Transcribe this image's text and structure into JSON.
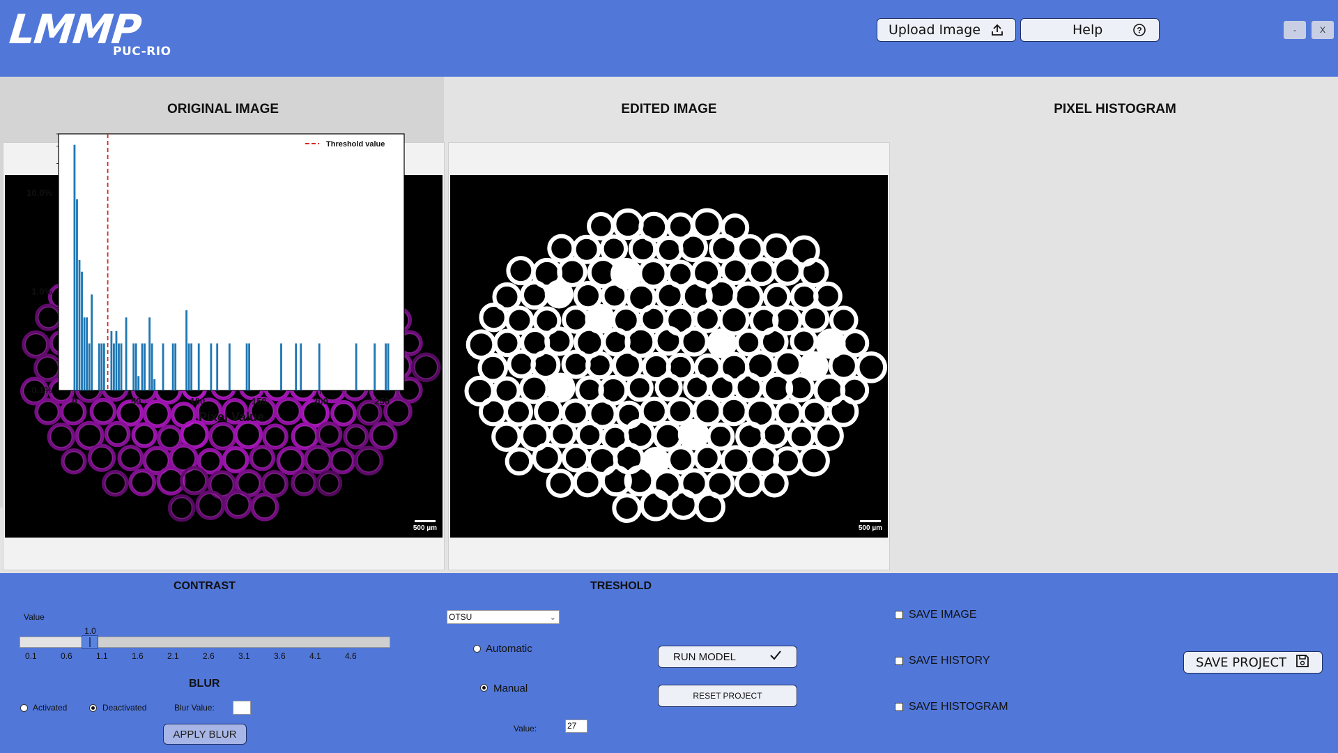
{
  "header": {
    "logo_text": "LMMP",
    "logo_subtext": "PUC-RIO",
    "upload_label": "Upload Image",
    "help_label": "Help",
    "minimize_label": "-",
    "close_label": "X"
  },
  "panels": {
    "original_title": "ORIGINAL IMAGE",
    "edited_title": "EDITED IMAGE",
    "histogram_title": "PIXEL HISTOGRAM",
    "scale_label": "500 µm"
  },
  "chart_data": {
    "type": "bar",
    "title": "",
    "xlabel": "Pixel Value",
    "ylabel": "",
    "y_scale": "log",
    "xlim": [
      -13,
      268
    ],
    "ylim": [
      0.1,
      40
    ],
    "x_ticks": [
      0,
      50,
      100,
      150,
      200,
      250
    ],
    "y_ticks": [
      {
        "value": 0.1,
        "label": "0.1%"
      },
      {
        "value": 1.0,
        "label": "1.0%"
      },
      {
        "value": 10.0,
        "label": "10.0%"
      }
    ],
    "legend": {
      "position": "top-right",
      "entries": [
        "Threshold value"
      ]
    },
    "threshold": 27,
    "bins": [
      {
        "x": 0,
        "y": 31
      },
      {
        "x": 2,
        "y": 8.7
      },
      {
        "x": 4,
        "y": 2.1
      },
      {
        "x": 6,
        "y": 1.6
      },
      {
        "x": 8,
        "y": 0.55
      },
      {
        "x": 10,
        "y": 0.55
      },
      {
        "x": 12,
        "y": 0.3
      },
      {
        "x": 14,
        "y": 0.94
      },
      {
        "x": 20,
        "y": 0.3
      },
      {
        "x": 22,
        "y": 0.3
      },
      {
        "x": 24,
        "y": 0.3
      },
      {
        "x": 30,
        "y": 0.4
      },
      {
        "x": 32,
        "y": 0.3
      },
      {
        "x": 34,
        "y": 0.4
      },
      {
        "x": 36,
        "y": 0.3
      },
      {
        "x": 38,
        "y": 0.3
      },
      {
        "x": 42,
        "y": 0.55
      },
      {
        "x": 48,
        "y": 0.3
      },
      {
        "x": 50,
        "y": 0.3
      },
      {
        "x": 52,
        "y": 0.14
      },
      {
        "x": 55,
        "y": 0.3
      },
      {
        "x": 57,
        "y": 0.3
      },
      {
        "x": 61,
        "y": 0.55
      },
      {
        "x": 63,
        "y": 0.3
      },
      {
        "x": 65,
        "y": 0.13
      },
      {
        "x": 72,
        "y": 0.3
      },
      {
        "x": 80,
        "y": 0.3
      },
      {
        "x": 82,
        "y": 0.3
      },
      {
        "x": 91,
        "y": 0.65
      },
      {
        "x": 93,
        "y": 0.3
      },
      {
        "x": 95,
        "y": 0.3
      },
      {
        "x": 101,
        "y": 0.3
      },
      {
        "x": 111,
        "y": 0.3
      },
      {
        "x": 116,
        "y": 0.3
      },
      {
        "x": 126,
        "y": 0.3
      },
      {
        "x": 140,
        "y": 0.3
      },
      {
        "x": 142,
        "y": 0.3
      },
      {
        "x": 168,
        "y": 0.3
      },
      {
        "x": 180,
        "y": 0.3
      },
      {
        "x": 184,
        "y": 0.3
      },
      {
        "x": 199,
        "y": 0.3
      },
      {
        "x": 229,
        "y": 0.3
      },
      {
        "x": 244,
        "y": 0.3
      },
      {
        "x": 253,
        "y": 0.3
      },
      {
        "x": 255,
        "y": 0.3
      }
    ]
  },
  "contrast": {
    "title": "CONTRAST",
    "value_label": "Value",
    "current_value": "1.0",
    "ticks": [
      "0.1",
      "0.6",
      "1.1",
      "1.6",
      "2.1",
      "2.6",
      "3.1",
      "3.6",
      "4.1",
      "4.6"
    ],
    "position_fraction": 0.19
  },
  "blur": {
    "title": "BLUR",
    "activated_label": "Activated",
    "deactivated_label": "Deactivated",
    "selected": "Deactivated",
    "value_label": "Blur Value:",
    "value": "",
    "apply_label": "APPLY BLUR"
  },
  "threshold": {
    "title": "TRESHOLD",
    "method": "OTSU",
    "automatic_label": "Automatic",
    "manual_label": "Manual",
    "selected": "Manual",
    "value_label": "Value:",
    "value": "27",
    "run_label": "RUN MODEL",
    "reset_label": "RESET PROJECT"
  },
  "save": {
    "image_label": "SAVE IMAGE",
    "history_label": "SAVE HISTORY",
    "histogram_label": "SAVE HISTOGRAM",
    "project_label": "SAVE PROJECT"
  },
  "colors": {
    "background": "#5177d9",
    "fiber_magenta": "#b020c4",
    "histogram_bar": "#1f77b4",
    "threshold_line": "#d62728"
  }
}
